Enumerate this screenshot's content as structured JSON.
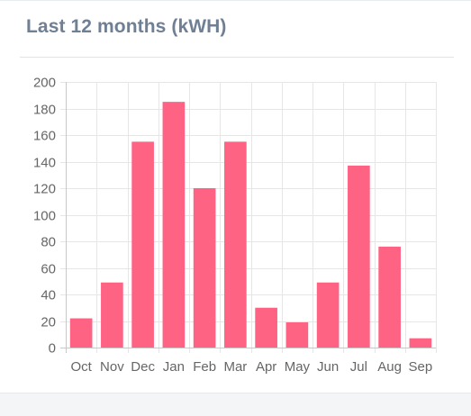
{
  "card": {
    "title": "Last 12 months (kWH)"
  },
  "colors": {
    "bar_fill": "#ff6384",
    "grid": "#e6e6e6",
    "axis": "#c8c8c8",
    "tick_text": "#666666",
    "title": "#6f7f94"
  },
  "chart_data": {
    "type": "bar",
    "title": "",
    "xlabel": "",
    "ylabel": "",
    "categories": [
      "Oct",
      "Nov",
      "Dec",
      "Jan",
      "Feb",
      "Mar",
      "Apr",
      "May",
      "Jun",
      "Jul",
      "Aug",
      "Sep"
    ],
    "values": [
      22,
      49,
      155,
      185,
      120,
      155,
      30,
      19,
      49,
      137,
      76,
      7
    ],
    "ylim": [
      0,
      200
    ],
    "yticks": [
      0,
      20,
      40,
      60,
      80,
      100,
      120,
      140,
      160,
      180,
      200
    ],
    "ytick_labels": [
      "0",
      "20",
      "40",
      "60",
      "80",
      "100",
      "120",
      "140",
      "160",
      "180",
      "200"
    ],
    "grid": true,
    "legend": "none"
  }
}
